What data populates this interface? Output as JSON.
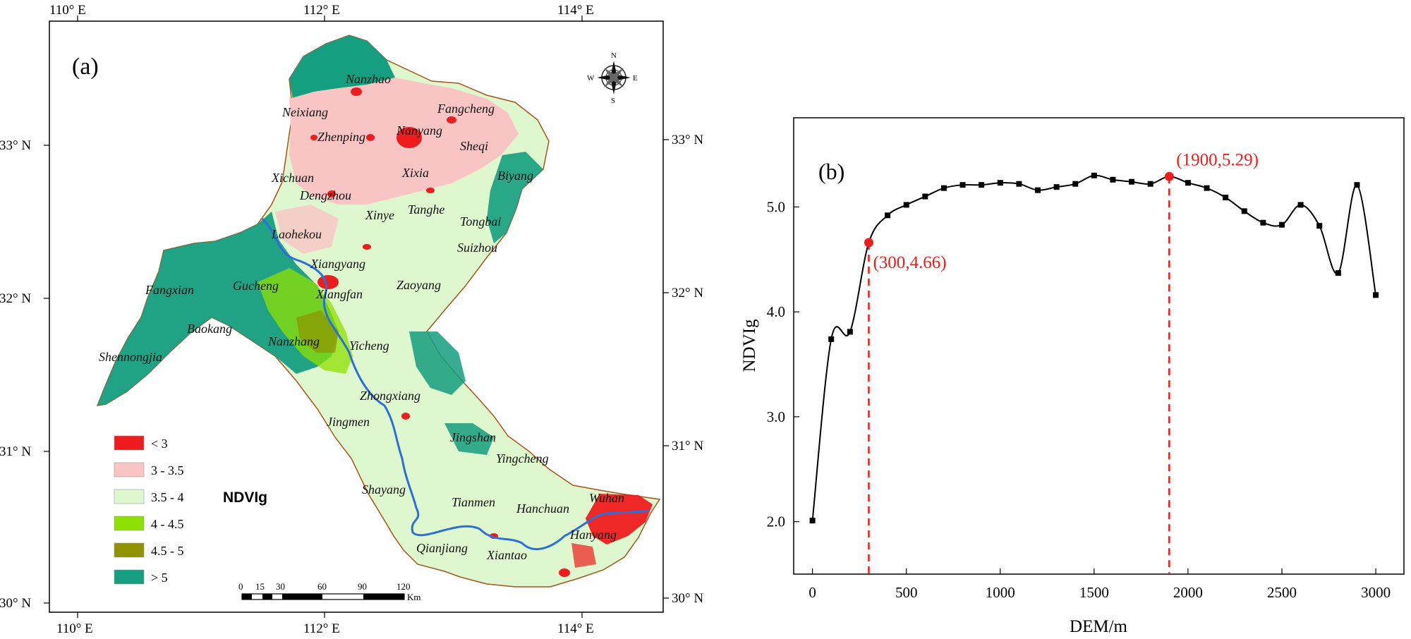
{
  "panel_a": {
    "label": "(a)",
    "top_ticks": [
      "110° E",
      "112° E",
      "114° E"
    ],
    "bottom_ticks": [
      "110° E",
      "112° E",
      "114° E"
    ],
    "left_ticks": [
      "33° N",
      "32° N",
      "31° N",
      "30° N"
    ],
    "right_ticks": [
      "33° N",
      "32° N",
      "31° N",
      "30° N"
    ],
    "compass": {
      "n": "N",
      "s": "S",
      "e": "E",
      "w": "W"
    },
    "legend_title": "NDVIg",
    "legend": [
      {
        "label": "< 3",
        "color": "#ee1c1c"
      },
      {
        "label": "3 - 3.5",
        "color": "#f9c4c4"
      },
      {
        "label": "3.5 - 4",
        "color": "#dff7cf"
      },
      {
        "label": "4 - 4.5",
        "color": "#8ee000"
      },
      {
        "label": "4.5 - 5",
        "color": "#8f9300"
      },
      {
        "label": "> 5",
        "color": "#159e7f"
      }
    ],
    "scale_bar": {
      "ticks": [
        "0",
        "15",
        "30",
        "60",
        "90",
        "120"
      ],
      "unit": "Km"
    },
    "cities": [
      "Nanzhao",
      "Neixiang",
      "Fangcheng",
      "Zhenping",
      "Nanyang",
      "Sheqi",
      "Xixia",
      "Xichuan",
      "Biyang",
      "Dengzhou",
      "Xinye",
      "Tanghe",
      "Tongbai",
      "Laohekou",
      "Suizhou",
      "Xiangyang",
      "Fangxian",
      "Gucheng",
      "Xiangfan",
      "Zaoyang",
      "Baokang",
      "Nanzhang",
      "Yicheng",
      "Shennongjia",
      "Zhongxiang",
      "Jingmen",
      "Jingshan",
      "Yingcheng",
      "Shayang",
      "Tianmen",
      "Wuhan",
      "Hanchuan",
      "Hanyang",
      "Qianjiang",
      "Xiantao"
    ]
  },
  "chart_data": {
    "type": "line",
    "panel_label": "(b)",
    "xlabel": "DEM/m",
    "ylabel": "NDVIg",
    "xlim": [
      -100,
      3150
    ],
    "ylim": [
      1.5,
      5.85
    ],
    "xticks": [
      0,
      500,
      1000,
      1500,
      2000,
      2500,
      3000
    ],
    "yticks": [
      2.0,
      3.0,
      4.0,
      5.0
    ],
    "ytick_labels": [
      "2.0",
      "3.0",
      "4.0",
      "5.0"
    ],
    "grid": false,
    "series": [
      {
        "marker": "square",
        "x": [
          0,
          100,
          200,
          300,
          400,
          500,
          600,
          700,
          800,
          900,
          1000,
          1100,
          1200,
          1300,
          1400,
          1500,
          1600,
          1700,
          1800,
          1900,
          2000,
          2100,
          2200,
          2300,
          2400,
          2500,
          2600,
          2700,
          2800,
          2900,
          3000
        ],
        "y": [
          2.01,
          3.74,
          3.81,
          4.66,
          4.92,
          5.02,
          5.1,
          5.18,
          5.21,
          5.21,
          5.23,
          5.22,
          5.16,
          5.19,
          5.22,
          5.3,
          5.26,
          5.24,
          5.22,
          5.29,
          5.23,
          5.18,
          5.09,
          4.96,
          4.85,
          4.83,
          5.02,
          4.82,
          4.37,
          5.21,
          4.16
        ]
      }
    ],
    "annotations": [
      {
        "x": 300,
        "y": 4.66,
        "text": "(300,4.66)"
      },
      {
        "x": 1900,
        "y": 5.29,
        "text": "(1900,5.29)"
      }
    ]
  }
}
